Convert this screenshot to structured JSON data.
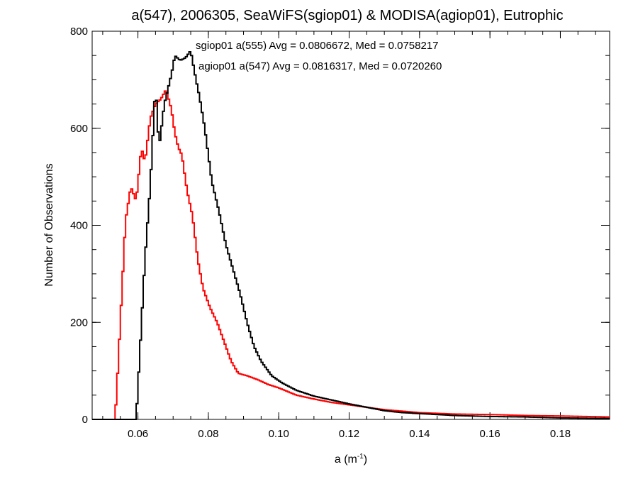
{
  "chart_data": {
    "type": "line",
    "title": "a(547), 2006305, SeaWiFS(sgiop01) & MODISA(agiop01), Eutrophic",
    "xlabel_main": "a (m",
    "xlabel_sup": "-1",
    "xlabel_end": ")",
    "ylabel": "Number of Observations",
    "xlim": [
      0.047,
      0.194
    ],
    "ylim": [
      0,
      800
    ],
    "x_ticks": [
      0.06,
      0.08,
      0.1,
      0.12,
      0.14,
      0.16,
      0.18
    ],
    "x_tick_labels": [
      "0.06",
      "0.08",
      "0.10",
      "0.12",
      "0.14",
      "0.16",
      "0.18"
    ],
    "y_ticks": [
      0,
      200,
      400,
      600,
      800
    ],
    "y_tick_labels": [
      "0",
      "200",
      "400",
      "600",
      "800"
    ],
    "grid": false,
    "annotations": [
      "sgiop01 a(555) Avg = 0.0806672, Med = 0.0758217",
      "agiop01 a(547) Avg = 0.0816317, Med = 0.0720260"
    ],
    "colors": {
      "sgiop01": "#000000",
      "agiop01": "#ff0000"
    },
    "series": [
      {
        "color": "#000000",
        "x": [
          0.047,
          0.0595,
          0.0605,
          0.062,
          0.0635,
          0.065,
          0.066,
          0.0675,
          0.0685,
          0.0695,
          0.0705,
          0.072,
          0.0735,
          0.075,
          0.0765,
          0.0775,
          0.079,
          0.081,
          0.083,
          0.085,
          0.087,
          0.089,
          0.091,
          0.093,
          0.095,
          0.098,
          0.101,
          0.105,
          0.11,
          0.115,
          0.12,
          0.125,
          0.13,
          0.135,
          0.14,
          0.15,
          0.16,
          0.17,
          0.18,
          0.194
        ],
        "y": [
          0,
          0,
          130,
          330,
          480,
          690,
          560,
          650,
          680,
          710,
          750,
          740,
          745,
          760,
          700,
          665,
          600,
          490,
          430,
          360,
          310,
          260,
          200,
          150,
          120,
          90,
          75,
          60,
          48,
          40,
          32,
          25,
          18,
          14,
          12,
          8,
          6,
          5,
          3,
          2
        ]
      },
      {
        "color": "#ff0000",
        "x": [
          0.047,
          0.0535,
          0.054,
          0.055,
          0.0565,
          0.058,
          0.0595,
          0.061,
          0.062,
          0.0635,
          0.065,
          0.0665,
          0.068,
          0.0695,
          0.0705,
          0.0715,
          0.0725,
          0.074,
          0.0755,
          0.077,
          0.0785,
          0.0805,
          0.0825,
          0.0845,
          0.0865,
          0.0885,
          0.091,
          0.094,
          0.097,
          0.1,
          0.105,
          0.11,
          0.115,
          0.12,
          0.125,
          0.13,
          0.135,
          0.14,
          0.15,
          0.16,
          0.17,
          0.18,
          0.194
        ],
        "y": [
          0,
          0,
          60,
          200,
          410,
          480,
          450,
          560,
          530,
          620,
          650,
          660,
          680,
          640,
          590,
          560,
          545,
          470,
          420,
          330,
          270,
          230,
          200,
          160,
          120,
          95,
          90,
          82,
          72,
          65,
          50,
          42,
          35,
          30,
          25,
          20,
          17,
          14,
          11,
          10,
          8,
          7,
          5
        ]
      }
    ]
  }
}
